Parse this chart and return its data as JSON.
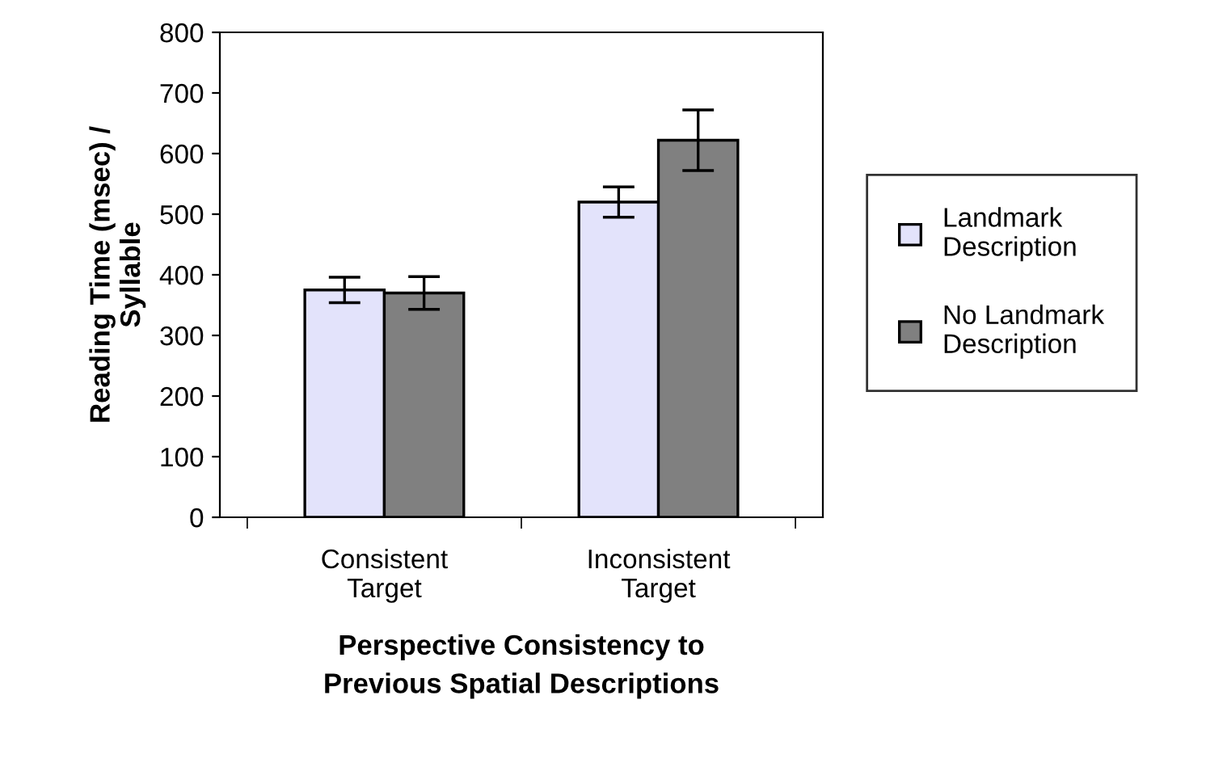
{
  "chart_data": {
    "type": "bar",
    "categories": [
      "Consistent\nTarget",
      "Inconsistent\nTarget"
    ],
    "series": [
      {
        "name": "Landmark\nDescription",
        "color": "#e3e3fb",
        "values": [
          375,
          520
        ],
        "errors": [
          21,
          25
        ]
      },
      {
        "name": "No Landmark\nDescription",
        "color": "#808080",
        "values": [
          370,
          622
        ],
        "errors": [
          27,
          50
        ]
      }
    ],
    "xlabel": "Perspective Consistency to\nPrevious Spatial Descriptions",
    "ylabel": "Reading Time (msec) /\nSyllable",
    "ylim": [
      0,
      800
    ],
    "yticks": [
      0,
      100,
      200,
      300,
      400,
      500,
      600,
      700,
      800
    ],
    "legend": "right",
    "grid": false
  }
}
